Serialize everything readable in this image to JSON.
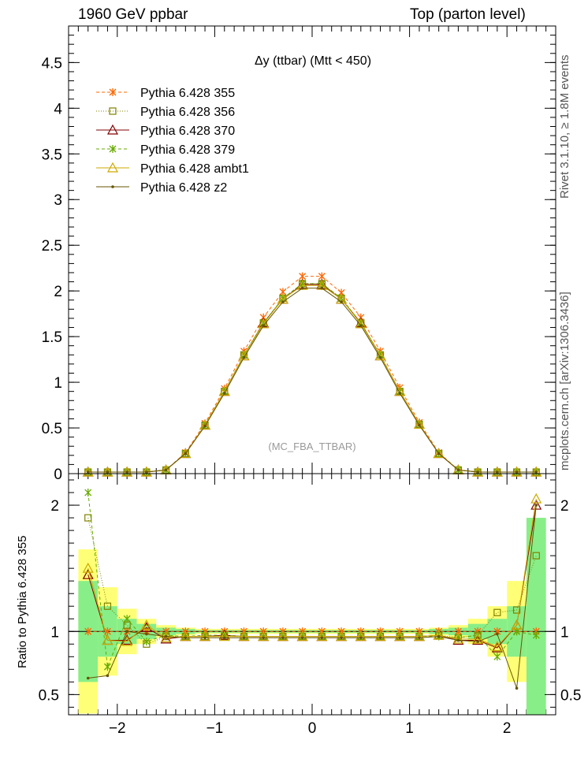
{
  "header": {
    "left": "1960 GeV ppbar",
    "right": "Top (parton level)"
  },
  "side": {
    "right_top": "Rivet 3.1.10, ≥ 1.8M events",
    "right_bottom": "mcplots.cern.ch [arXiv:1306.3436]",
    "ratio_ylabel": "Ratio to Pythia 6.428 355"
  },
  "chart_data": {
    "type": "line",
    "title": "Δy (ttbar) (Mtt < 450)",
    "watermark": "(MC_FBA_TTBAR)",
    "x": [
      -2.3,
      -2.1,
      -1.9,
      -1.7,
      -1.5,
      -1.3,
      -1.1,
      -0.9,
      -0.7,
      -0.5,
      -0.3,
      -0.1,
      0.1,
      0.3,
      0.5,
      0.7,
      0.9,
      1.1,
      1.3,
      1.5,
      1.7,
      1.9,
      2.1,
      2.3
    ],
    "xlim": [
      -2.5,
      2.5
    ],
    "ylim": [
      0,
      4.9
    ],
    "grid": false,
    "legend_position": "top-left",
    "x_ticks": [
      "−2",
      "−1",
      "0",
      "1",
      "2"
    ],
    "y_ticks": [
      "0",
      "0.5",
      "1",
      "1.5",
      "2",
      "2.5",
      "3",
      "3.5",
      "4",
      "4.5"
    ],
    "series": [
      {
        "name": "Pythia 6.428 355",
        "color": "#ff6600",
        "dash": "4,3",
        "marker": "star",
        "values": [
          0.001,
          0.002,
          0.004,
          0.01,
          0.04,
          0.23,
          0.55,
          0.93,
          1.34,
          1.71,
          1.99,
          2.16,
          2.16,
          1.98,
          1.71,
          1.34,
          0.94,
          0.56,
          0.23,
          0.04,
          0.01,
          0.004,
          0.002,
          0.001
        ],
        "ratio": [
          1.0,
          1.0,
          1.0,
          1.0,
          1.0,
          1.0,
          1.0,
          1.0,
          1.0,
          1.0,
          1.0,
          1.0,
          1.0,
          1.0,
          1.0,
          1.0,
          1.0,
          1.0,
          1.0,
          1.0,
          1.0,
          1.0,
          1.0,
          1.0
        ]
      },
      {
        "name": "Pythia 6.428 356",
        "color": "#808000",
        "dash": "1,2",
        "marker": "square",
        "values": [
          0.001,
          0.002,
          0.004,
          0.01,
          0.04,
          0.22,
          0.53,
          0.9,
          1.3,
          1.65,
          1.92,
          2.08,
          2.08,
          1.92,
          1.65,
          1.3,
          0.9,
          0.54,
          0.22,
          0.04,
          0.01,
          0.004,
          0.002,
          0.001
        ],
        "ratio": [
          1.9,
          1.2,
          1.05,
          0.9,
          0.96,
          0.96,
          0.96,
          0.96,
          0.96,
          0.96,
          0.96,
          0.96,
          0.96,
          0.96,
          0.96,
          0.96,
          0.96,
          0.96,
          0.97,
          0.95,
          0.97,
          1.15,
          1.17,
          1.6
        ]
      },
      {
        "name": "Pythia 6.428 370",
        "color": "#800000",
        "dash": "",
        "marker": "triangle",
        "values": [
          0.001,
          0.002,
          0.004,
          0.01,
          0.04,
          0.22,
          0.53,
          0.9,
          1.29,
          1.65,
          1.91,
          2.07,
          2.07,
          1.91,
          1.65,
          1.29,
          0.9,
          0.54,
          0.22,
          0.04,
          0.01,
          0.004,
          0.002,
          0.001
        ],
        "ratio": [
          1.45,
          0.93,
          0.93,
          1.03,
          0.94,
          0.96,
          0.96,
          0.97,
          0.96,
          0.96,
          0.96,
          0.96,
          0.96,
          0.96,
          0.96,
          0.96,
          0.96,
          0.96,
          0.97,
          0.93,
          0.93,
          0.87,
          1.05,
          2.0
        ]
      },
      {
        "name": "Pythia 6.428 379",
        "color": "#66aa00",
        "dash": "4,3",
        "marker": "star",
        "values": [
          0.001,
          0.002,
          0.004,
          0.01,
          0.04,
          0.22,
          0.53,
          0.9,
          1.3,
          1.65,
          1.92,
          2.08,
          2.08,
          1.92,
          1.65,
          1.3,
          0.9,
          0.54,
          0.22,
          0.04,
          0.01,
          0.004,
          0.002,
          0.001
        ],
        "ratio": [
          2.1,
          0.72,
          1.1,
          0.92,
          0.97,
          0.96,
          0.97,
          0.97,
          0.96,
          0.96,
          0.96,
          0.96,
          0.96,
          0.96,
          0.96,
          0.96,
          0.96,
          0.96,
          0.96,
          0.95,
          0.97,
          0.8,
          1.0,
          0.97
        ]
      },
      {
        "name": "Pythia 6.428 ambt1",
        "color": "#ccaa00",
        "dash": "",
        "marker": "triangle",
        "values": [
          0.001,
          0.002,
          0.004,
          0.01,
          0.04,
          0.22,
          0.53,
          0.9,
          1.29,
          1.64,
          1.91,
          2.06,
          2.06,
          1.91,
          1.64,
          1.29,
          0.9,
          0.54,
          0.22,
          0.04,
          0.01,
          0.004,
          0.002,
          0.001
        ],
        "ratio": [
          1.5,
          0.93,
          0.92,
          1.05,
          0.95,
          0.96,
          0.96,
          0.96,
          0.96,
          0.96,
          0.96,
          0.96,
          0.96,
          0.96,
          0.96,
          0.96,
          0.96,
          0.96,
          0.97,
          0.94,
          0.94,
          0.88,
          1.05,
          2.05
        ]
      },
      {
        "name": "Pythia 6.428 z2",
        "color": "#665500",
        "dash": "",
        "marker": "dot",
        "values": [
          0.001,
          0.002,
          0.004,
          0.01,
          0.04,
          0.22,
          0.52,
          0.88,
          1.27,
          1.62,
          1.88,
          2.03,
          2.03,
          1.88,
          1.62,
          1.27,
          0.88,
          0.53,
          0.22,
          0.04,
          0.01,
          0.004,
          0.002,
          0.001
        ],
        "ratio": [
          0.63,
          0.65,
          1.0,
          0.98,
          0.96,
          0.95,
          0.95,
          0.95,
          0.95,
          0.95,
          0.95,
          0.95,
          0.95,
          0.95,
          0.95,
          0.95,
          0.95,
          0.95,
          0.96,
          0.93,
          0.92,
          0.98,
          0.55,
          2.0
        ]
      }
    ],
    "ratio_panel": {
      "ylim": [
        0.34,
        2.25
      ],
      "y_ticks": [
        "0.5",
        "1",
        "2"
      ],
      "y_tick_values": [
        0.5,
        1,
        2
      ],
      "band_yellow_halfwidth": [
        0.65,
        0.35,
        0.18,
        0.1,
        0.05,
        0.03,
        0.02,
        0.02,
        0.02,
        0.02,
        0.02,
        0.02,
        0.02,
        0.02,
        0.02,
        0.02,
        0.02,
        0.02,
        0.03,
        0.05,
        0.1,
        0.2,
        0.4,
        0.75
      ],
      "band_green_halfwidth": [
        0.4,
        0.2,
        0.1,
        0.06,
        0.03,
        0.02,
        0.01,
        0.01,
        0.01,
        0.01,
        0.01,
        0.01,
        0.01,
        0.01,
        0.01,
        0.01,
        0.01,
        0.01,
        0.02,
        0.03,
        0.06,
        0.1,
        0.2,
        0.9
      ]
    }
  }
}
